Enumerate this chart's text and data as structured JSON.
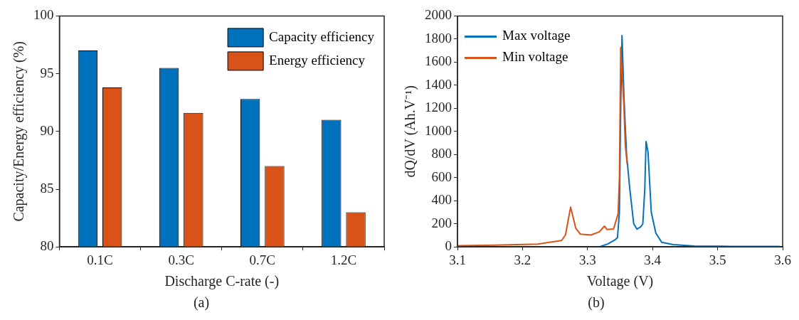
{
  "chart_data": [
    {
      "type": "bar",
      "xlabel": "Discharge C-rate (-)",
      "ylabel": "Capacity/Energy efficiency (%)",
      "categories": [
        "0.1C",
        "0.3C",
        "0.7C",
        "1.2C"
      ],
      "series": [
        {
          "name": "Capacity efficiency",
          "color": "#0072bd",
          "values": [
            97.0,
            95.5,
            92.8,
            91.0
          ]
        },
        {
          "name": "Energy efficiency",
          "color": "#d95319",
          "values": [
            93.8,
            91.6,
            87.0,
            83.0
          ]
        }
      ],
      "ylim": [
        80,
        100
      ],
      "yticks": [
        80,
        85,
        90,
        95,
        100
      ],
      "grid": false,
      "legend": "top right",
      "annotations": [
        "(a)"
      ]
    },
    {
      "type": "line",
      "xlabel": "Voltage (V)",
      "ylabel": "dQ/dV (Ah.V⁻¹)",
      "series": [
        {
          "name": "Max voltage",
          "color": "#0072bd",
          "x": [
            3.32,
            3.331,
            3.342,
            3.346,
            3.349,
            3.351,
            3.353,
            3.356,
            3.36,
            3.365,
            3.371,
            3.376,
            3.382,
            3.385,
            3.388,
            3.39,
            3.393,
            3.398,
            3.405,
            3.414,
            3.432,
            3.465,
            3.519,
            3.595
          ],
          "values": [
            5,
            25,
            60,
            80,
            300,
            1200,
            1830,
            1300,
            800,
            500,
            200,
            154,
            175,
            200,
            500,
            913,
            820,
            300,
            120,
            40,
            20,
            8,
            5,
            5
          ]
        },
        {
          "name": "Min voltage",
          "color": "#d95319",
          "x": [
            3.1,
            3.157,
            3.224,
            3.26,
            3.266,
            3.274,
            3.282,
            3.289,
            3.305,
            3.318,
            3.326,
            3.33,
            3.34,
            3.347,
            3.349,
            3.351,
            3.356,
            3.358,
            3.361
          ],
          "values": [
            10,
            15,
            25,
            55,
            103,
            345,
            160,
            110,
            103,
            130,
            180,
            150,
            155,
            287,
            595,
            1727,
            1210,
            882,
            718
          ]
        }
      ],
      "xlim": [
        3.1,
        3.6
      ],
      "xticks": [
        3.1,
        3.2,
        3.3,
        3.4,
        3.5,
        3.6
      ],
      "ylim": [
        0,
        2000
      ],
      "yticks": [
        0,
        200,
        400,
        600,
        800,
        1000,
        1200,
        1400,
        1600,
        1800,
        2000
      ],
      "grid": false,
      "legend": "top left",
      "line_style": "solid",
      "marker": "none",
      "annotations": [
        "(b)"
      ]
    }
  ]
}
